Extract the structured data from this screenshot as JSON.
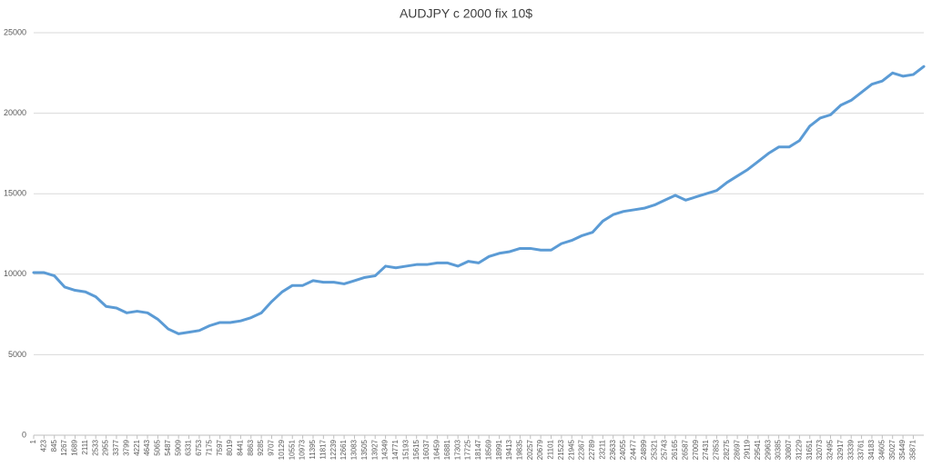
{
  "chart_data": {
    "type": "line",
    "title": "AUDJPY c 2000 fix 10$",
    "x": [
      1,
      423,
      845,
      1267,
      1689,
      2111,
      2533,
      2955,
      3377,
      3799,
      4221,
      4643,
      5065,
      5487,
      5909,
      6331,
      6753,
      7175,
      7597,
      8019,
      8441,
      8863,
      9285,
      9707,
      10129,
      10551,
      10973,
      11395,
      11817,
      12239,
      12661,
      13083,
      13505,
      13927,
      14349,
      14771,
      15193,
      15615,
      16037,
      16459,
      16881,
      17303,
      17725,
      18147,
      18569,
      18991,
      19413,
      19835,
      20257,
      20679,
      21101,
      21523,
      21945,
      22367,
      22789,
      23211,
      23633,
      24055,
      24477,
      24899,
      25321,
      25743,
      26165,
      26587,
      27009,
      27431,
      27853,
      28275,
      28697,
      29119,
      29541,
      29963,
      30385,
      30807,
      31229,
      31651,
      32073,
      32495,
      32917,
      33339,
      33761,
      34183,
      34605,
      35027,
      35449,
      35871,
      36300
    ],
    "values": [
      10100,
      10100,
      9900,
      9200,
      9000,
      8900,
      8600,
      8000,
      7900,
      7600,
      7700,
      7600,
      7200,
      6600,
      6300,
      6400,
      6500,
      6800,
      7000,
      7000,
      7100,
      7300,
      7600,
      8300,
      8900,
      9300,
      9300,
      9600,
      9500,
      9500,
      9400,
      9600,
      9800,
      9900,
      10500,
      10400,
      10500,
      10600,
      10600,
      10700,
      10700,
      10500,
      10800,
      10700,
      11100,
      11300,
      11400,
      11600,
      11600,
      11500,
      11500,
      11900,
      12100,
      12400,
      12600,
      13300,
      13700,
      13900,
      14000,
      14100,
      14300,
      14600,
      14900,
      14600,
      14800,
      15000,
      15200,
      15700,
      16100,
      16500,
      17000,
      17500,
      17900,
      17900,
      18300,
      19200,
      19700,
      19900,
      20500,
      20800,
      21300,
      21800,
      22000,
      22500,
      22300,
      22400,
      22900
    ],
    "color": "#5b9bd5",
    "xlim": [
      1,
      36300
    ],
    "xticks": [
      1,
      423,
      845,
      1267,
      1689,
      2111,
      2533,
      2955,
      3377,
      3799,
      4221,
      4643,
      5065,
      5487,
      5909,
      6331,
      6753,
      7175,
      7597,
      8019,
      8441,
      8863,
      9285,
      9707,
      10129,
      10551,
      10973,
      11395,
      11817,
      12239,
      12661,
      13083,
      13505,
      13927,
      14349,
      14771,
      15193,
      15615,
      16037,
      16459,
      16881,
      17303,
      17725,
      18147,
      18569,
      18991,
      19413,
      19835,
      20257,
      20679,
      21101,
      21523,
      21945,
      22367,
      22789,
      23211,
      23633,
      24055,
      24477,
      24899,
      25321,
      25743,
      26165,
      26587,
      27009,
      27431,
      27853,
      28275,
      28697,
      29119,
      29541,
      29963,
      30385,
      30807,
      31229,
      31651,
      32073,
      32495,
      32917,
      33339,
      33761,
      34183,
      34605,
      35027,
      35449,
      35871
    ],
    "ylim": [
      0,
      25000
    ],
    "yticks": [
      0,
      5000,
      10000,
      15000,
      20000,
      25000
    ],
    "grid": true
  }
}
